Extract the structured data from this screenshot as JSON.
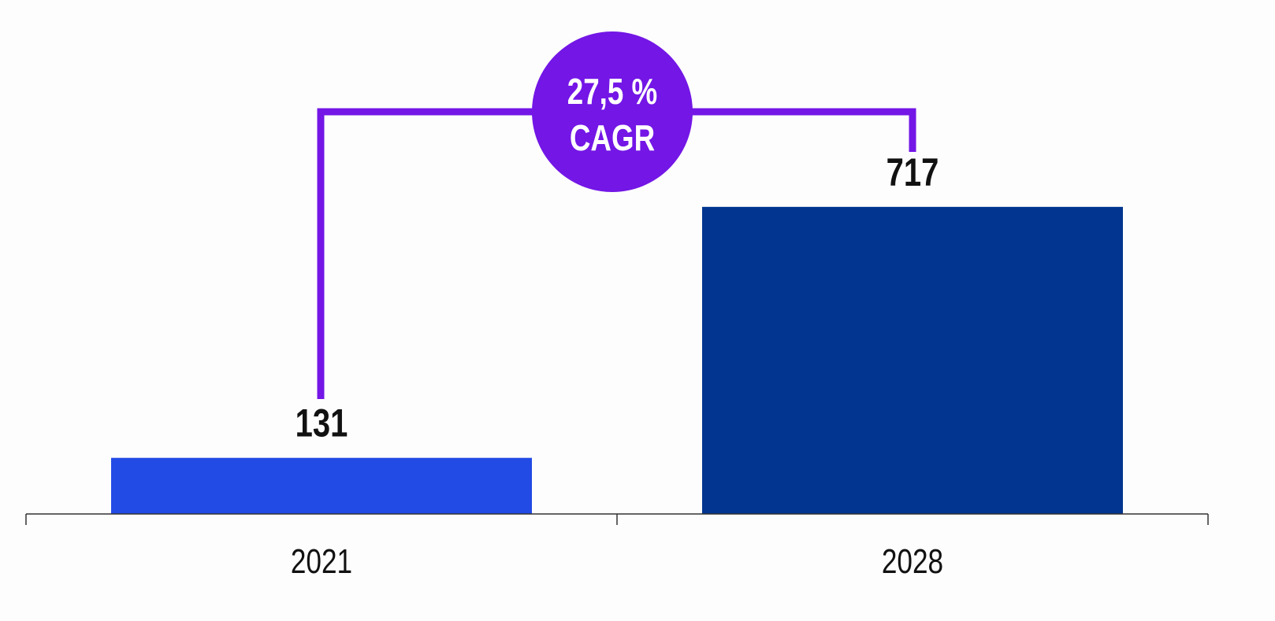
{
  "chart_data": {
    "type": "bar",
    "categories": [
      "2021",
      "2028"
    ],
    "values": [
      131,
      717
    ],
    "data_labels": [
      "131",
      "717"
    ],
    "ylim": [
      0,
      1200
    ],
    "grid": false,
    "bar_colors": [
      "#224BE5",
      "#01358F"
    ],
    "annotation": {
      "value": "27,5 %",
      "label": "CAGR",
      "color": "#7316E6"
    }
  }
}
